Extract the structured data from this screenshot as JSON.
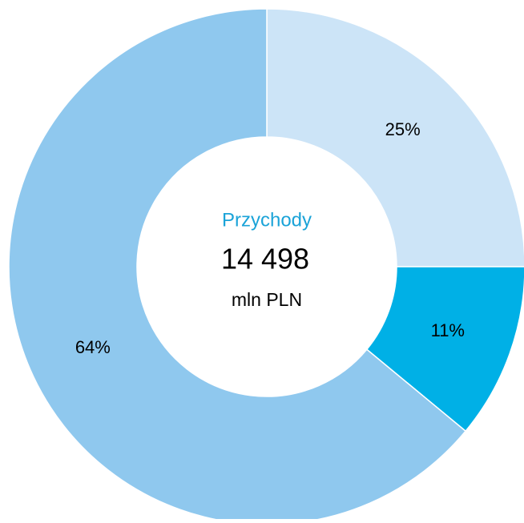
{
  "chart_data": {
    "type": "donut",
    "values": [
      25,
      11,
      64
    ],
    "value_labels": [
      "25%",
      "11%",
      "64%"
    ],
    "colors": [
      "#cce4f7",
      "#00b0e6",
      "#8fc8ee"
    ],
    "center_title": "Przychody",
    "center_value": "14 498",
    "center_unit": "mln PLN"
  }
}
